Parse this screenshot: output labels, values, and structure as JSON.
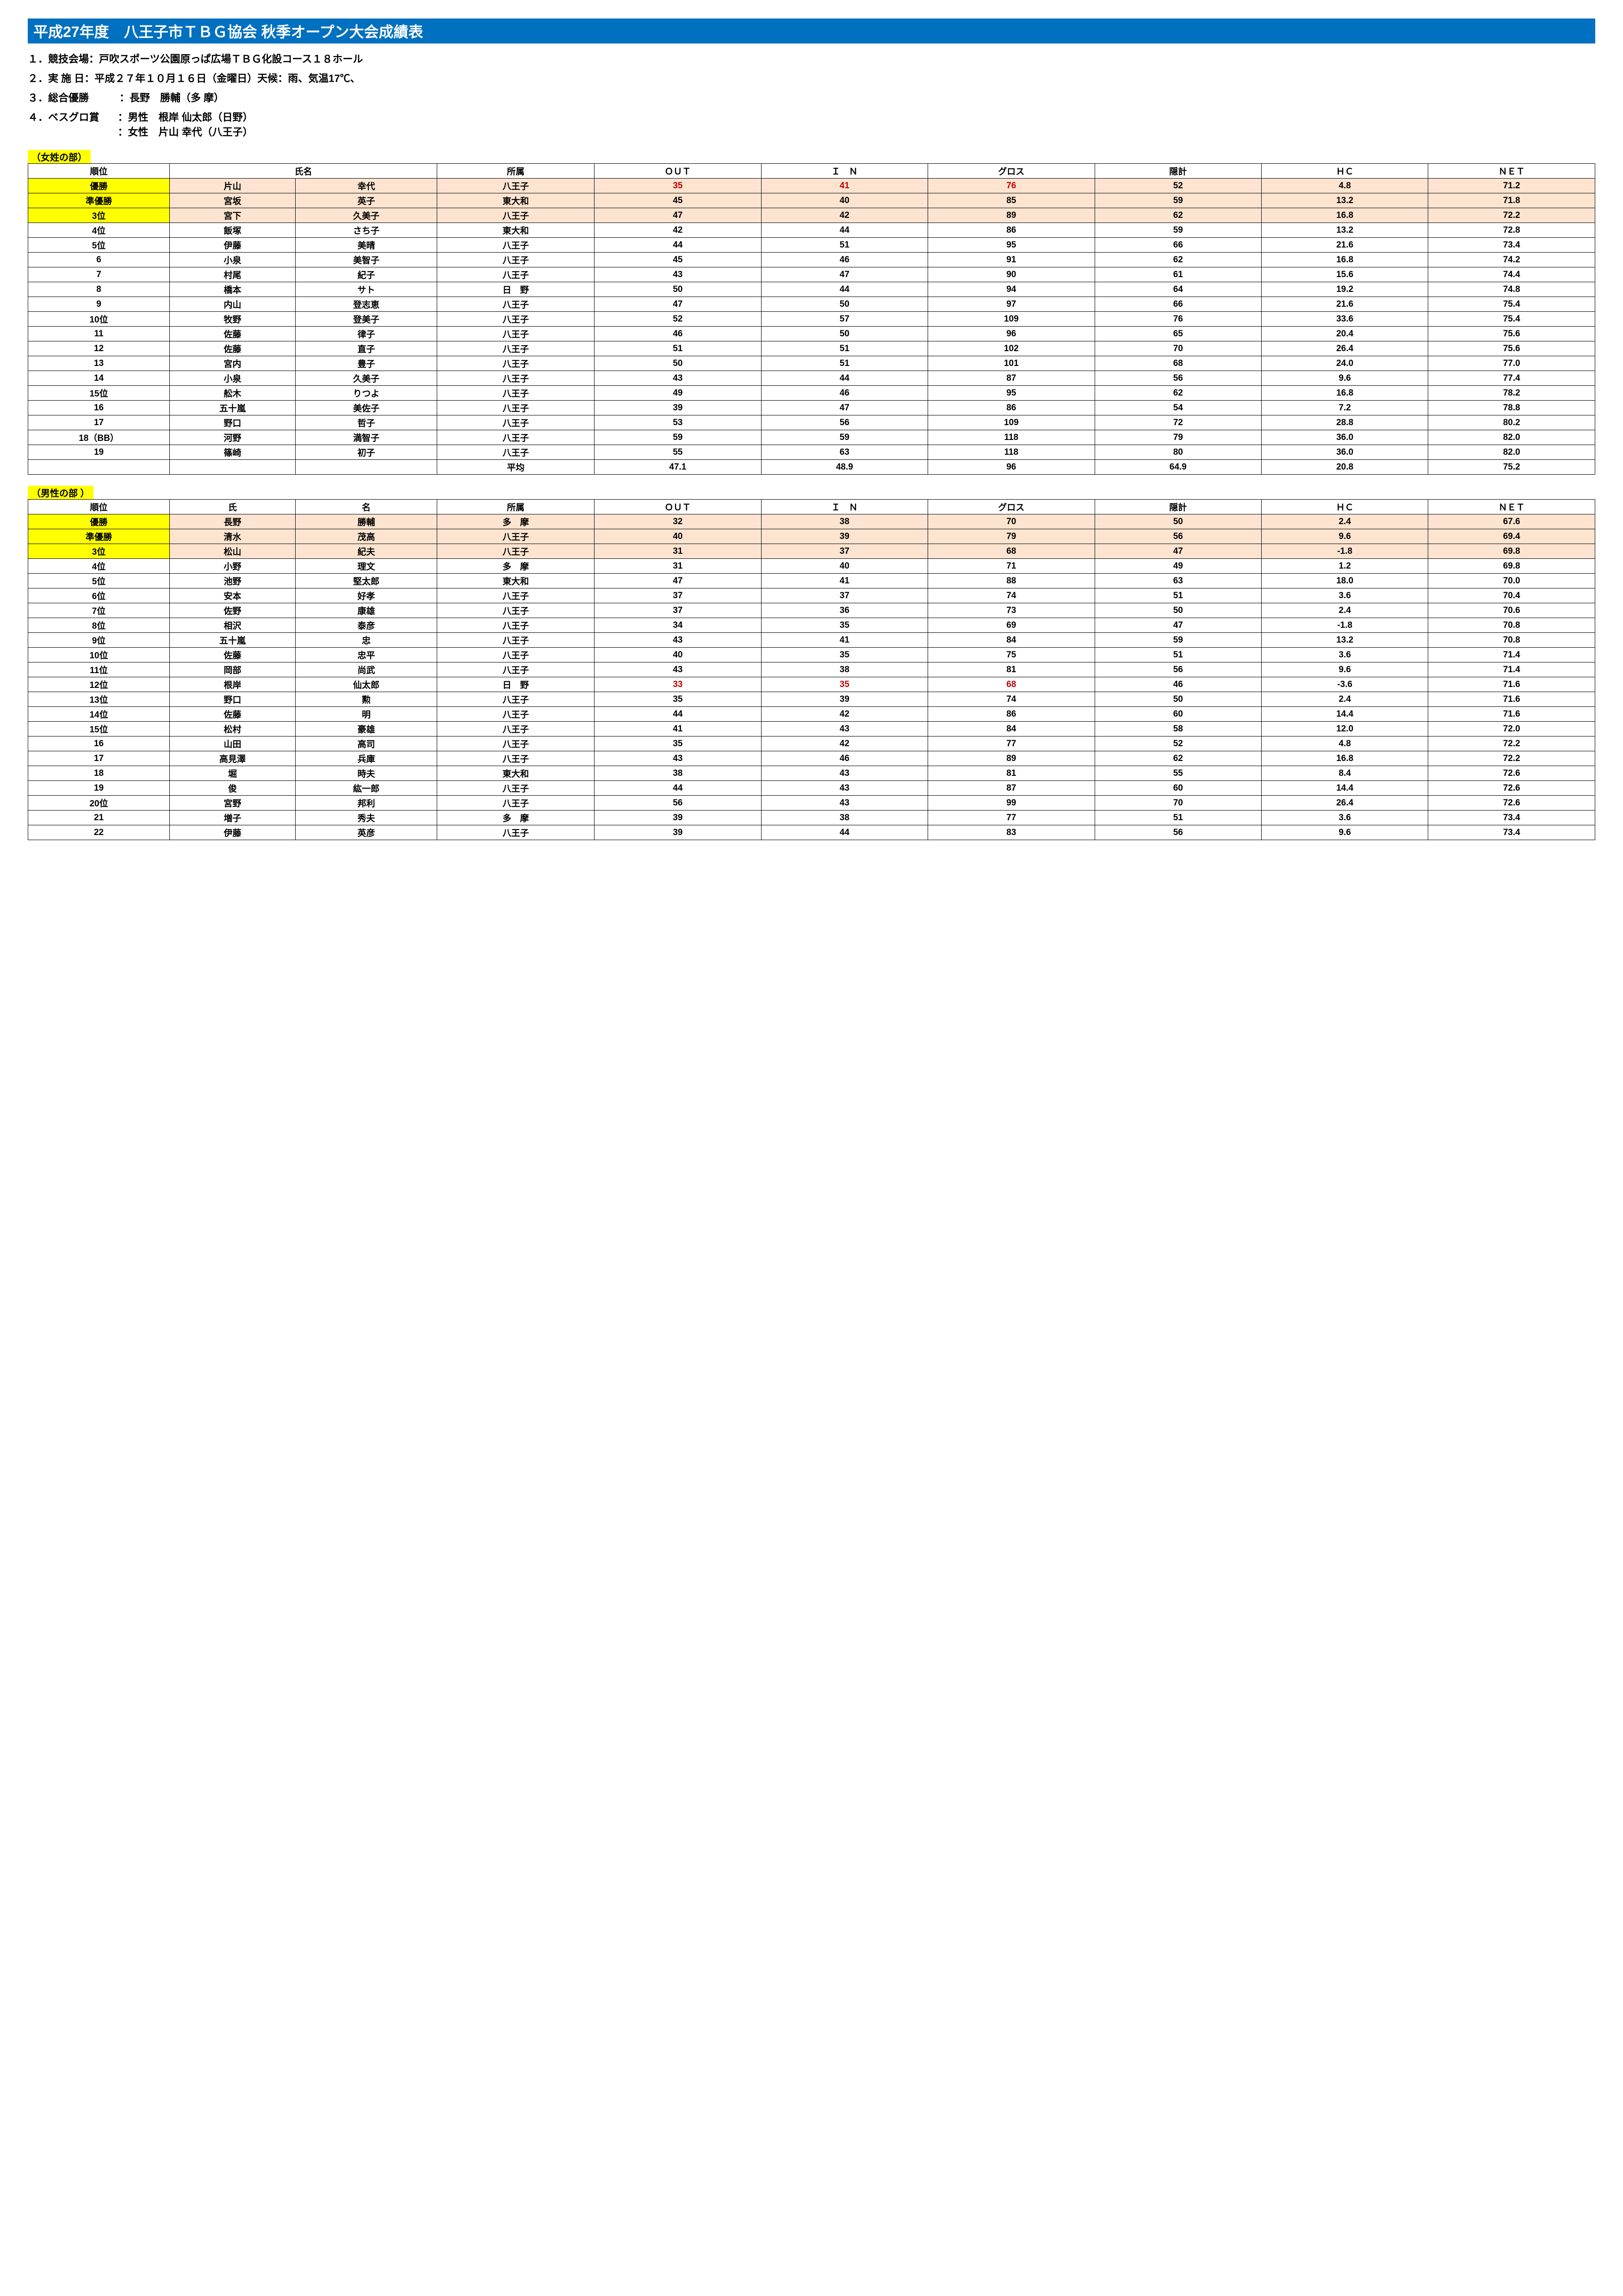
{
  "title": "平成27年度　八王子市ＴＢＧ協会 秋季オープン大会成績表",
  "info": {
    "l1": "１．競技会場：戸吹スポーツ公園原っぱ広場ＴＢＧ化設コース１８ホール",
    "l2": "２．実 施 日：平成２７年１０月１６日（金曜日）天候：雨、気温17℃、",
    "l3": "３．総合優勝　　　：長野　勝輔（多 摩）",
    "l4": "４．ベスグロ賞",
    "l4a": "：男性　根岸 仙太郎（日野）",
    "l4b": "：女性　片山 幸代（八王子）"
  },
  "section_f": "（女姓の部）",
  "section_m": "（男性の部 ）",
  "headers": {
    "rank": "順位",
    "name": "氏名",
    "sur": "氏",
    "giv": "名",
    "aff": "所属",
    "out": "ＯＵＴ",
    "in": "Ｉ　Ｎ",
    "gross": "グロス",
    "hid": "隠計",
    "hc": "ＨＣ",
    "net": "ＮＥＴ"
  },
  "avg_label": "平均",
  "female": {
    "rows": [
      {
        "hl": 1,
        "red": 1,
        "rank": "優勝",
        "s": "片山",
        "g": "幸代",
        "aff": "八王子",
        "out": "35",
        "in": "41",
        "gr": "76",
        "hid": "52",
        "hc": "4.8",
        "net": "71.2"
      },
      {
        "hl": 1,
        "rank": "準優勝",
        "s": "宮坂",
        "g": "英子",
        "aff": "東大和",
        "out": "45",
        "in": "40",
        "gr": "85",
        "hid": "59",
        "hc": "13.2",
        "net": "71.8"
      },
      {
        "hl": 1,
        "rank": "3位",
        "s": "宮下",
        "g": "久美子",
        "aff": "八王子",
        "out": "47",
        "in": "42",
        "gr": "89",
        "hid": "62",
        "hc": "16.8",
        "net": "72.2"
      },
      {
        "rank": "4位",
        "s": "飯塚",
        "g": "さち子",
        "aff": "東大和",
        "out": "42",
        "in": "44",
        "gr": "86",
        "hid": "59",
        "hc": "13.2",
        "net": "72.8"
      },
      {
        "rank": "5位",
        "s": "伊藤",
        "g": "美晴",
        "aff": "八王子",
        "out": "44",
        "in": "51",
        "gr": "95",
        "hid": "66",
        "hc": "21.6",
        "net": "73.4"
      },
      {
        "rank": "6",
        "s": "小泉",
        "g": "美智子",
        "aff": "八王子",
        "out": "45",
        "in": "46",
        "gr": "91",
        "hid": "62",
        "hc": "16.8",
        "net": "74.2"
      },
      {
        "rank": "7",
        "s": "村尾",
        "g": "紀子",
        "aff": "八王子",
        "out": "43",
        "in": "47",
        "gr": "90",
        "hid": "61",
        "hc": "15.6",
        "net": "74.4"
      },
      {
        "rank": "8",
        "s": "橋本",
        "g": "サト",
        "aff": "日　野",
        "out": "50",
        "in": "44",
        "gr": "94",
        "hid": "64",
        "hc": "19.2",
        "net": "74.8"
      },
      {
        "rank": "9",
        "s": "内山",
        "g": "登志恵",
        "aff": "八王子",
        "out": "47",
        "in": "50",
        "gr": "97",
        "hid": "66",
        "hc": "21.6",
        "net": "75.4"
      },
      {
        "rank": "10位",
        "s": "牧野",
        "g": "登美子",
        "aff": "八王子",
        "out": "52",
        "in": "57",
        "gr": "109",
        "hid": "76",
        "hc": "33.6",
        "net": "75.4"
      },
      {
        "rank": "11",
        "s": "佐藤",
        "g": "律子",
        "aff": "八王子",
        "out": "46",
        "in": "50",
        "gr": "96",
        "hid": "65",
        "hc": "20.4",
        "net": "75.6"
      },
      {
        "rank": "12",
        "s": "佐藤",
        "g": "直子",
        "aff": "八王子",
        "out": "51",
        "in": "51",
        "gr": "102",
        "hid": "70",
        "hc": "26.4",
        "net": "75.6"
      },
      {
        "rank": "13",
        "s": "宮内",
        "g": "豊子",
        "aff": "八王子",
        "out": "50",
        "in": "51",
        "gr": "101",
        "hid": "68",
        "hc": "24.0",
        "net": "77.0"
      },
      {
        "rank": "14",
        "s": "小泉",
        "g": "久美子",
        "aff": "八王子",
        "out": "43",
        "in": "44",
        "gr": "87",
        "hid": "56",
        "hc": "9.6",
        "net": "77.4"
      },
      {
        "rank": "15位",
        "s": "舩木",
        "g": "りつよ",
        "aff": "八王子",
        "out": "49",
        "in": "46",
        "gr": "95",
        "hid": "62",
        "hc": "16.8",
        "net": "78.2"
      },
      {
        "rank": "16",
        "s": "五十嵐",
        "g": "美佐子",
        "aff": "八王子",
        "out": "39",
        "in": "47",
        "gr": "86",
        "hid": "54",
        "hc": "7.2",
        "net": "78.8"
      },
      {
        "rank": "17",
        "s": "野口",
        "g": "哲子",
        "aff": "八王子",
        "out": "53",
        "in": "56",
        "gr": "109",
        "hid": "72",
        "hc": "28.8",
        "net": "80.2"
      },
      {
        "rank": "18（BB）",
        "s": "河野",
        "g": "満智子",
        "aff": "八王子",
        "out": "59",
        "in": "59",
        "gr": "118",
        "hid": "79",
        "hc": "36.0",
        "net": "82.0"
      },
      {
        "rank": "19",
        "s": "篠崎",
        "g": "初子",
        "aff": "八王子",
        "out": "55",
        "in": "63",
        "gr": "118",
        "hid": "80",
        "hc": "36.0",
        "net": "82.0"
      }
    ],
    "avg": {
      "out": "47.1",
      "in": "48.9",
      "gr": "96",
      "hid": "64.9",
      "hc": "20.8",
      "net": "75.2"
    }
  },
  "male": {
    "rows": [
      {
        "hl": 1,
        "rank": "優勝",
        "s": "長野",
        "g": "勝輔",
        "aff": "多　摩",
        "out": "32",
        "in": "38",
        "gr": "70",
        "hid": "50",
        "hc": "2.4",
        "net": "67.6"
      },
      {
        "hl": 1,
        "rank": "準優勝",
        "s": "清水",
        "g": "茂高",
        "aff": "八王子",
        "out": "40",
        "in": "39",
        "gr": "79",
        "hid": "56",
        "hc": "9.6",
        "net": "69.4"
      },
      {
        "hl": 1,
        "rank": "3位",
        "s": "松山",
        "g": "紀夫",
        "aff": "八王子",
        "out": "31",
        "in": "37",
        "gr": "68",
        "hid": "47",
        "hc": "-1.8",
        "net": "69.8"
      },
      {
        "rank": "4位",
        "s": "小野",
        "g": "理文",
        "aff": "多　摩",
        "out": "31",
        "in": "40",
        "gr": "71",
        "hid": "49",
        "hc": "1.2",
        "net": "69.8"
      },
      {
        "rank": "5位",
        "s": "池野",
        "g": "堅太郎",
        "aff": "東大和",
        "out": "47",
        "in": "41",
        "gr": "88",
        "hid": "63",
        "hc": "18.0",
        "net": "70.0"
      },
      {
        "rank": "6位",
        "s": "安本",
        "g": "好孝",
        "aff": "八王子",
        "out": "37",
        "in": "37",
        "gr": "74",
        "hid": "51",
        "hc": "3.6",
        "net": "70.4"
      },
      {
        "rank": "7位",
        "s": "佐野",
        "g": "康雄",
        "aff": "八王子",
        "out": "37",
        "in": "36",
        "gr": "73",
        "hid": "50",
        "hc": "2.4",
        "net": "70.6"
      },
      {
        "rank": "8位",
        "s": "相沢",
        "g": "泰彦",
        "aff": "八王子",
        "out": "34",
        "in": "35",
        "gr": "69",
        "hid": "47",
        "hc": "-1.8",
        "net": "70.8"
      },
      {
        "rank": "9位",
        "s": "五十嵐",
        "g": "忠",
        "aff": "八王子",
        "out": "43",
        "in": "41",
        "gr": "84",
        "hid": "59",
        "hc": "13.2",
        "net": "70.8"
      },
      {
        "rank": "10位",
        "s": "佐藤",
        "g": "忠平",
        "aff": "八王子",
        "out": "40",
        "in": "35",
        "gr": "75",
        "hid": "51",
        "hc": "3.6",
        "net": "71.4"
      },
      {
        "rank": "11位",
        "s": "岡部",
        "g": "尚武",
        "aff": "八王子",
        "out": "43",
        "in": "38",
        "gr": "81",
        "hid": "56",
        "hc": "9.6",
        "net": "71.4"
      },
      {
        "red": 1,
        "rank": "12位",
        "s": "根岸",
        "g": "仙太郎",
        "aff": "日　野",
        "out": "33",
        "in": "35",
        "gr": "68",
        "hid": "46",
        "hc": "-3.6",
        "net": "71.6"
      },
      {
        "rank": "13位",
        "s": "野口",
        "g": "勲",
        "aff": "八王子",
        "out": "35",
        "in": "39",
        "gr": "74",
        "hid": "50",
        "hc": "2.4",
        "net": "71.6"
      },
      {
        "rank": "14位",
        "s": "佐藤",
        "g": "明",
        "aff": "八王子",
        "out": "44",
        "in": "42",
        "gr": "86",
        "hid": "60",
        "hc": "14.4",
        "net": "71.6"
      },
      {
        "rank": "15位",
        "s": "松村",
        "g": "豪雄",
        "aff": "八王子",
        "out": "41",
        "in": "43",
        "gr": "84",
        "hid": "58",
        "hc": "12.0",
        "net": "72.0"
      },
      {
        "rank": "16",
        "s": "山田",
        "g": "高司",
        "aff": "八王子",
        "out": "35",
        "in": "42",
        "gr": "77",
        "hid": "52",
        "hc": "4.8",
        "net": "72.2"
      },
      {
        "rank": "17",
        "s": "高見澤",
        "g": "兵庫",
        "aff": "八王子",
        "out": "43",
        "in": "46",
        "gr": "89",
        "hid": "62",
        "hc": "16.8",
        "net": "72.2"
      },
      {
        "rank": "18",
        "s": "堀",
        "g": "時夫",
        "aff": "東大和",
        "out": "38",
        "in": "43",
        "gr": "81",
        "hid": "55",
        "hc": "8.4",
        "net": "72.6"
      },
      {
        "rank": "19",
        "s": "俊",
        "g": "紘一郎",
        "aff": "八王子",
        "out": "44",
        "in": "43",
        "gr": "87",
        "hid": "60",
        "hc": "14.4",
        "net": "72.6"
      },
      {
        "rank": "20位",
        "s": "宮野",
        "g": "邦利",
        "aff": "八王子",
        "out": "56",
        "in": "43",
        "gr": "99",
        "hid": "70",
        "hc": "26.4",
        "net": "72.6"
      },
      {
        "rank": "21",
        "s": "増子",
        "g": "秀夫",
        "aff": "多　摩",
        "out": "39",
        "in": "38",
        "gr": "77",
        "hid": "51",
        "hc": "3.6",
        "net": "73.4"
      },
      {
        "rank": "22",
        "s": "伊藤",
        "g": "英彦",
        "aff": "八王子",
        "out": "39",
        "in": "44",
        "gr": "83",
        "hid": "56",
        "hc": "9.6",
        "net": "73.4"
      }
    ]
  }
}
